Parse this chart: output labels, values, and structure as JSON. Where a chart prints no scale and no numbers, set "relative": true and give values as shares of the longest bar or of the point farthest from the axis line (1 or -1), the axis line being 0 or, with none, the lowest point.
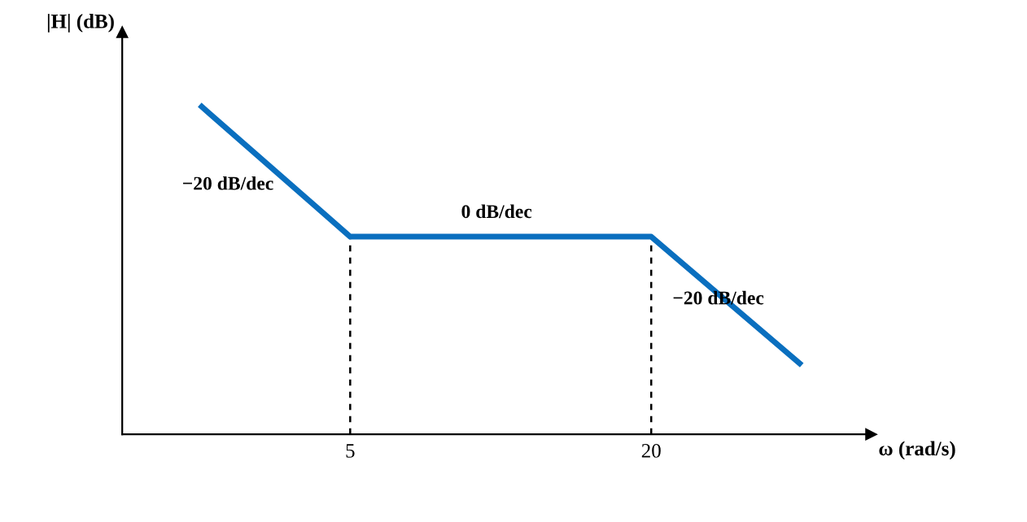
{
  "chart_data": {
    "type": "line",
    "relative": true,
    "log": "x",
    "xlabel": "ω (rad/s)",
    "ylabel": "|H| (dB)",
    "x": [
      2.5,
      5,
      20,
      40
    ],
    "series": [
      {
        "color": "#0a6fbf",
        "values": [
          1,
          0.6,
          0.6,
          0.21
        ]
      }
    ],
    "xlim": [
      1.75,
      55
    ],
    "xticks": [
      5,
      20
    ],
    "grid": false,
    "legend": false,
    "marker": "none",
    "line_style": "solid",
    "ref_lines": [
      {
        "axis": "x",
        "value": 5,
        "line_style": "dashed",
        "color": "#000000"
      },
      {
        "axis": "x",
        "value": 20,
        "line_style": "dashed",
        "color": "#000000"
      }
    ],
    "annotations": [
      "−20 dB/dec",
      "0 dB/dec",
      "−20 dB/dec"
    ]
  }
}
